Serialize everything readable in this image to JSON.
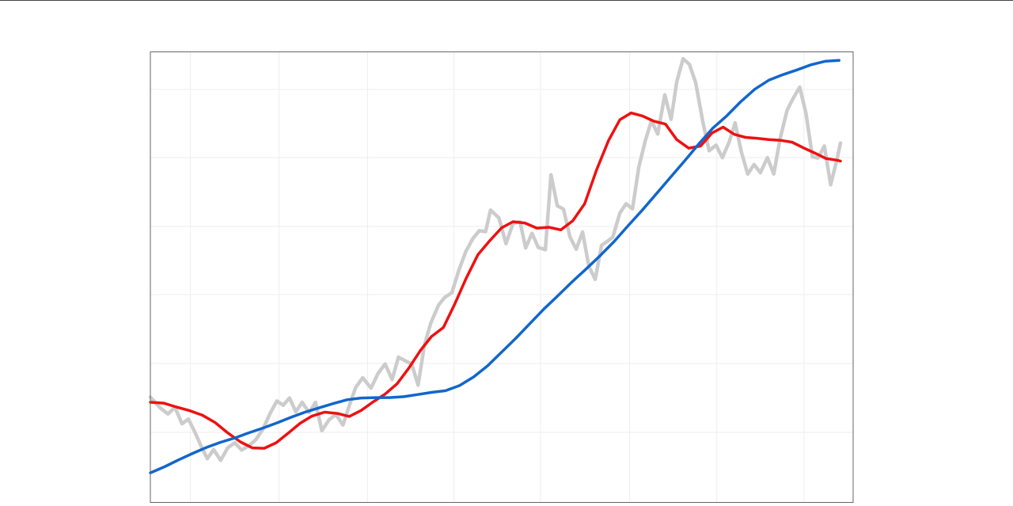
{
  "chart_data": {
    "type": "line",
    "title": "",
    "xlabel": "",
    "ylabel": "",
    "tick_labels_visible": false,
    "legend": "none",
    "grid": true,
    "xlim": [
      0,
      100
    ],
    "ylim": [
      0,
      100
    ],
    "x_gridlines": [
      5.7,
      18.3,
      30.9,
      43.2,
      55.5,
      68.2,
      80.6,
      93.0
    ],
    "y_gridlines": [
      15.2,
      30.5,
      45.7,
      61.0,
      76.3,
      91.5
    ],
    "colors": {
      "price": "#cccccc",
      "fast_ma": "#ee1111",
      "slow_ma": "#1166cc",
      "grid": "#eeeeee",
      "frame": "#666666"
    },
    "series": [
      {
        "key": "price",
        "color": "#cccccc",
        "x": [
          0,
          1.4,
          2.5,
          3.5,
          4.5,
          5.4,
          6.2,
          7.2,
          8.1,
          9.0,
          10.0,
          11.0,
          12.0,
          13.0,
          14.0,
          15.0,
          16.0,
          17.0,
          18.0,
          18.9,
          19.8,
          20.7,
          21.6,
          22.6,
          23.5,
          24.4,
          25.4,
          26.4,
          27.4,
          28.3,
          29.2,
          30.2,
          31.4,
          32.4,
          33.4,
          34.4,
          35.3,
          36.2,
          37.2,
          38.1,
          39.0,
          39.9,
          41.0,
          41.9,
          42.9,
          43.9,
          44.9,
          45.9,
          46.8,
          47.7,
          48.4,
          49.6,
          50.6,
          51.6,
          52.6,
          53.4,
          54.3,
          55.2,
          56.2,
          57.0,
          57.9,
          58.8,
          59.7,
          60.6,
          61.5,
          62.4,
          63.3,
          64.2,
          65.0,
          65.8,
          66.8,
          67.7,
          68.6,
          69.5,
          70.4,
          71.3,
          72.2,
          73.2,
          74.1,
          74.9,
          75.8,
          76.7,
          77.6,
          78.6,
          79.5,
          80.5,
          81.4,
          82.4,
          83.2,
          84.1,
          85.0,
          85.9,
          86.8,
          87.8,
          88.7,
          89.6,
          90.6,
          91.5,
          92.4,
          93.3,
          94.2,
          95.0,
          95.9,
          96.8,
          97.7,
          98.2
        ],
        "y": [
          20.9,
          18.4,
          17.0,
          18.5,
          14.7,
          15.8,
          13.2,
          9.6,
          6.6,
          8.7,
          6.2,
          9.1,
          10.3,
          8.6,
          9.6,
          11.0,
          13.4,
          17.0,
          20.0,
          19.0,
          20.7,
          17.5,
          19.7,
          17.3,
          19.7,
          13.1,
          15.6,
          16.9,
          14.4,
          18.9,
          23.1,
          25.4,
          23.0,
          26.4,
          28.6,
          25.0,
          30.2,
          29.4,
          28.6,
          23.7,
          33.0,
          38.1,
          42.3,
          44.1,
          45.2,
          50.4,
          54.8,
          57.8,
          59.6,
          59.4,
          64.4,
          62.6,
          56.6,
          61.3,
          61.7,
          55.6,
          59.0,
          55.7,
          55.2,
          72.6,
          65.4,
          64.6,
          58.2,
          55.3,
          59.3,
          51.3,
          48.3,
          56.2,
          57.1,
          58.1,
          63.7,
          65.9,
          64.7,
          74.4,
          80.4,
          85.2,
          82.1,
          91.2,
          85.5,
          94.2,
          99.6,
          98.3,
          94.0,
          85.0,
          78.2,
          79.5,
          76.6,
          80.4,
          84.7,
          77.9,
          72.8,
          75.0,
          73.1,
          76.6,
          72.8,
          80.9,
          87.6,
          90.5,
          93.0,
          86.8,
          76.8,
          76.5,
          79.3,
          70.3,
          76.2,
          80.0
        ]
      },
      {
        "key": "fast_ma",
        "color": "#ee1111",
        "x": [
          0,
          1.9,
          3.7,
          5.5,
          7.4,
          9.2,
          11.0,
          12.8,
          14.5,
          16.2,
          17.9,
          19.6,
          21.3,
          23.0,
          24.8,
          26.6,
          28.3,
          30.0,
          31.7,
          33.4,
          35.1,
          36.8,
          38.4,
          40.0,
          41.7,
          43.3,
          44.9,
          46.6,
          48.3,
          50.0,
          51.6,
          53.3,
          55.0,
          56.7,
          58.4,
          60.1,
          61.8,
          63.5,
          65.2,
          66.8,
          68.4,
          70.0,
          71.6,
          73.3,
          74.9,
          76.6,
          78.3,
          79.9,
          81.5,
          83.1,
          84.7,
          86.3,
          88.0,
          89.7,
          91.3,
          92.9,
          94.5,
          96.1,
          97.7,
          98.2
        ],
        "y": [
          19.7,
          19.5,
          18.6,
          17.8,
          16.7,
          15.0,
          12.6,
          10.5,
          9.1,
          9.0,
          10.3,
          12.5,
          14.8,
          16.5,
          17.4,
          17.1,
          16.4,
          17.8,
          19.8,
          21.6,
          24.0,
          27.7,
          31.7,
          35.0,
          37.1,
          42.5,
          48.4,
          54.0,
          57.3,
          60.3,
          61.7,
          61.4,
          60.2,
          60.4,
          59.8,
          61.9,
          65.9,
          73.8,
          80.6,
          85.4,
          87.0,
          86.3,
          85.1,
          84.4,
          80.8,
          78.8,
          79.3,
          82.3,
          83.7,
          82.0,
          81.3,
          81.1,
          80.8,
          80.6,
          80.2,
          78.9,
          77.7,
          76.4,
          76.0,
          75.8
        ]
      },
      {
        "key": "slow_ma",
        "color": "#1166cc",
        "x": [
          0,
          2.0,
          4.0,
          6.0,
          8.0,
          10.0,
          12.0,
          14.0,
          16.0,
          18.0,
          20.0,
          22.0,
          24.0,
          26.0,
          28.0,
          30.0,
          32.0,
          34.0,
          36.0,
          38.0,
          40.0,
          42.0,
          44.0,
          46.0,
          48.0,
          50.0,
          52.0,
          54.0,
          56.0,
          58.0,
          60.0,
          62.0,
          64.0,
          66.0,
          68.0,
          70.0,
          72.0,
          74.0,
          76.0,
          78.0,
          80.0,
          82.0,
          84.0,
          86.0,
          88.0,
          90.0,
          92.0,
          94.0,
          96.0,
          98.0
        ],
        "y": [
          3.3,
          4.7,
          6.3,
          7.8,
          9.2,
          10.4,
          11.4,
          12.6,
          13.7,
          14.9,
          16.2,
          17.4,
          18.4,
          19.4,
          20.3,
          20.7,
          20.8,
          20.8,
          21.0,
          21.5,
          22.0,
          22.4,
          23.6,
          25.6,
          28.2,
          31.4,
          34.6,
          38.0,
          41.4,
          44.5,
          47.7,
          50.7,
          53.8,
          57.1,
          60.8,
          64.4,
          68.2,
          72.0,
          75.8,
          79.7,
          83.4,
          86.3,
          89.6,
          92.5,
          94.6,
          95.9,
          97.0,
          98.2,
          99.0,
          99.2
        ]
      }
    ]
  }
}
